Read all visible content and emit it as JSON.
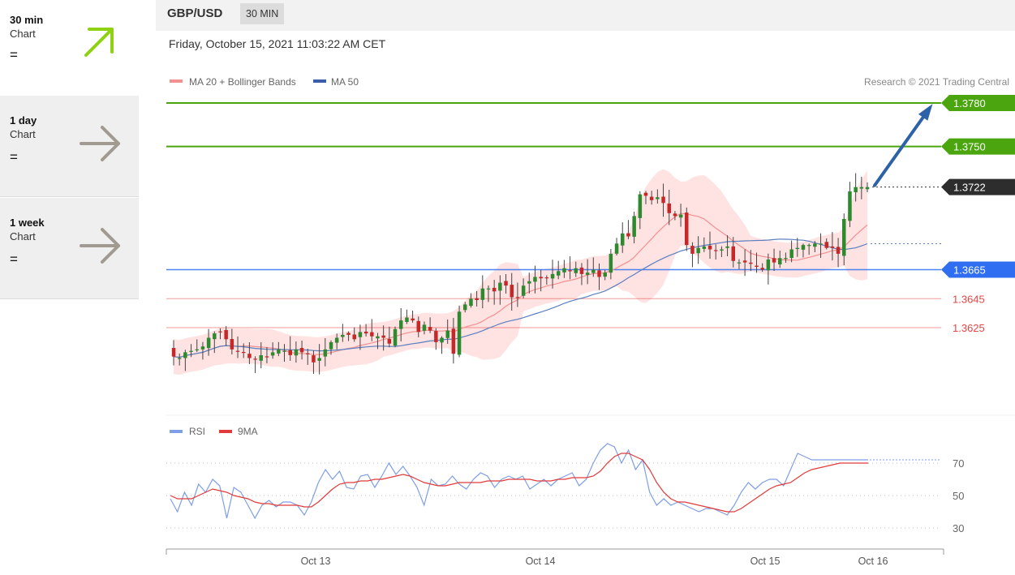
{
  "sidebar": {
    "items": [
      {
        "title": "30 min",
        "subtitle": "Chart",
        "signal": "=",
        "arrow": "arrow-up-right-icon",
        "color": "#8fd113"
      },
      {
        "title": "1 day",
        "subtitle": "Chart",
        "signal": "=",
        "arrow": "arrow-right-icon",
        "color": "#a09a90"
      },
      {
        "title": "1 week",
        "subtitle": "Chart",
        "signal": "=",
        "arrow": "arrow-right-icon",
        "color": "#a09a90"
      }
    ]
  },
  "header": {
    "symbol": "GBP/USD",
    "timeframe": "30 MIN"
  },
  "datetime": "Friday, October 15, 2021 11:03:22 AM CET",
  "legend": {
    "ma20": "MA 20 + Bollinger Bands",
    "ma50": "MA 50",
    "copyright": "Research © 2021 Trading Central",
    "rsi": "RSI",
    "rsi_ma": "9MA"
  },
  "colors": {
    "resistance": "#4aa50f",
    "support_blue": "#2f6ef0",
    "support_red": "#e64545",
    "current": "#2d2d2d",
    "forecast_arrow": "#2d62a8",
    "candle_up": "#2e8a2e",
    "candle_down": "#c62828",
    "bollinger_fill": "#ffd8d8",
    "ma20": "#f39090",
    "ma50": "#5a7fc0",
    "rsi": "#7f9ee8",
    "rsi_ma": "#e23a3a"
  },
  "chart_data": [
    {
      "type": "candlestick",
      "price_axis": [
        1.3585,
        1.3795
      ],
      "x_axis_labels": [
        "Oct 13",
        "Oct 14",
        "Oct 15",
        "Oct 16"
      ],
      "levels": [
        {
          "value": 1.378,
          "label": "1.3780",
          "kind": "resistance"
        },
        {
          "value": 1.375,
          "label": "1.3750",
          "kind": "resistance"
        },
        {
          "value": 1.3722,
          "label": "1.3722",
          "kind": "current"
        },
        {
          "value": 1.3665,
          "label": "1.3665",
          "kind": "support"
        },
        {
          "value": 1.3645,
          "label": "1.3645",
          "kind": "minor-support"
        },
        {
          "value": 1.3625,
          "label": "1.3625",
          "kind": "minor-support"
        }
      ],
      "close_path": [
        1.3605,
        1.3604,
        1.3608,
        1.3609,
        1.361,
        1.3612,
        1.3618,
        1.3621,
        1.3622,
        1.3617,
        1.361,
        1.3609,
        1.3608,
        1.3604,
        1.3603,
        1.3606,
        1.3605,
        1.3608,
        1.361,
        1.3609,
        1.3606,
        1.361,
        1.3608,
        1.3607,
        1.3601,
        1.3604,
        1.361,
        1.3615,
        1.3618,
        1.362,
        1.362,
        1.3617,
        1.3622,
        1.3621,
        1.3619,
        1.3619,
        1.3618,
        1.3614,
        1.3624,
        1.363,
        1.3632,
        1.363,
        1.3622,
        1.3627,
        1.3623,
        1.3615,
        1.3618,
        1.3623,
        1.3607,
        1.3636,
        1.3641,
        1.3645,
        1.3644,
        1.3652,
        1.3652,
        1.365,
        1.3656,
        1.3654,
        1.3646,
        1.3646,
        1.3654,
        1.3657,
        1.366,
        1.3659,
        1.3659,
        1.3662,
        1.3664,
        1.3666,
        1.3664,
        1.3666,
        1.3662,
        1.3663,
        1.3665,
        1.366,
        1.3663,
        1.3676,
        1.3683,
        1.369,
        1.3688,
        1.3702,
        1.3717,
        1.3716,
        1.3713,
        1.3715,
        1.3711,
        1.3704,
        1.3702,
        1.3703,
        1.3682,
        1.3676,
        1.368,
        1.3681,
        1.3679,
        1.3678,
        1.3679,
        1.3681,
        1.3671,
        1.367,
        1.367,
        1.3669,
        1.3667,
        1.3665,
        1.3672,
        1.367,
        1.3673,
        1.3673,
        1.3679,
        1.368,
        1.3682,
        1.3682,
        1.3683,
        1.3683,
        1.368,
        1.368,
        1.3676,
        1.37,
        1.3719,
        1.3722,
        1.3722,
        1.3722
      ],
      "ma20_overlay": {
        "name": "MA 20 + Bollinger Bands"
      },
      "ma50_overlay": {
        "name": "MA 50"
      },
      "forecast": {
        "from": 1.3722,
        "to": 1.378
      }
    },
    {
      "type": "line",
      "y_ticks": [
        30,
        50,
        70
      ],
      "ylim": [
        22,
        88
      ],
      "series": [
        {
          "name": "RSI",
          "values": [
            48,
            40,
            52,
            44,
            57,
            52,
            60,
            56,
            36,
            55,
            52,
            44,
            36,
            44,
            47,
            43,
            46,
            46,
            44,
            38,
            46,
            58,
            66,
            60,
            65,
            55,
            54,
            62,
            63,
            55,
            62,
            70,
            63,
            68,
            62,
            55,
            44,
            60,
            56,
            57,
            62,
            57,
            54,
            60,
            64,
            62,
            55,
            60,
            62,
            60,
            62,
            54,
            57,
            60,
            56,
            60,
            62,
            64,
            56,
            60,
            70,
            78,
            82,
            80,
            70,
            78,
            66,
            72,
            52,
            44,
            48,
            44,
            46,
            44,
            42,
            40,
            42,
            42,
            40,
            38,
            44,
            52,
            58,
            54,
            58,
            60,
            60,
            56,
            66,
            76,
            74,
            72,
            72,
            72,
            72,
            72,
            72,
            72,
            72,
            72
          ]
        },
        {
          "name": "9MA",
          "values": [
            50,
            48,
            48,
            48,
            50,
            52,
            54,
            53,
            52,
            50,
            49,
            48,
            46,
            45,
            45,
            44,
            44,
            44,
            44,
            43,
            43,
            46,
            50,
            54,
            57,
            58,
            58,
            59,
            59,
            60,
            60,
            61,
            62,
            63,
            62,
            60,
            58,
            57,
            56,
            56,
            57,
            58,
            58,
            58,
            58,
            59,
            59,
            59,
            60,
            60,
            60,
            60,
            59,
            59,
            59,
            60,
            60,
            61,
            61,
            61,
            62,
            65,
            70,
            74,
            76,
            76,
            74,
            72,
            66,
            58,
            52,
            48,
            46,
            46,
            45,
            44,
            43,
            42,
            41,
            40,
            40,
            42,
            45,
            48,
            51,
            54,
            56,
            57,
            58,
            61,
            64,
            66,
            67,
            68,
            69,
            70,
            70,
            70,
            70,
            70
          ]
        }
      ]
    }
  ]
}
